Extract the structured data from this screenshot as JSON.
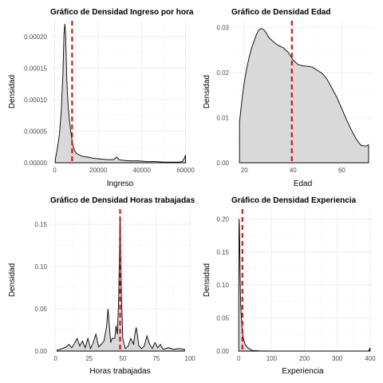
{
  "colors": {
    "fill": "#d9d9d9",
    "outline": "#000000",
    "mean_line": "#e00000",
    "grid": "#ebebeb"
  },
  "chart_data": [
    {
      "type": "area",
      "title": "Gráfico de Densidad Ingreso por hora",
      "xlabel": "Ingreso",
      "ylabel": "Densidad",
      "xlim": [
        -2000,
        62000
      ],
      "ylim": [
        0,
        0.000225
      ],
      "xticks": [
        0,
        20000,
        40000,
        60000
      ],
      "xtick_labels": [
        "0",
        "20000",
        "40000",
        "60000"
      ],
      "yticks": [
        0,
        5e-05,
        0.0001,
        0.00015,
        0.0002
      ],
      "ytick_labels": [
        "0.00000",
        "0.00005",
        "0.00010",
        "0.00015",
        "0.00020"
      ],
      "vline": 8000,
      "grid": true,
      "x": [
        300,
        1200,
        2200,
        3000,
        3800,
        4300,
        4700,
        5000,
        5300,
        5600,
        6100,
        6700,
        7400,
        8200,
        9000,
        10000,
        11500,
        13000,
        15000,
        18000,
        21000,
        24000,
        27000,
        28500,
        29500,
        31000,
        34000,
        38000,
        42000,
        46000,
        50000,
        54000,
        57000,
        58500,
        59300,
        60000
      ],
      "y": [
        5e-06,
        2.2e-05,
        4.5e-05,
        8e-05,
        0.00014,
        0.000205,
        0.00022,
        0.000205,
        0.00017,
        0.00013,
        9.5e-05,
        7e-05,
        5e-05,
        3e-05,
        2e-05,
        1.5e-05,
        1.2e-05,
        1e-05,
        9e-06,
        7e-06,
        6e-06,
        5e-06,
        5e-06,
        9e-06,
        5e-06,
        4e-06,
        3e-06,
        3e-06,
        2e-06,
        2e-06,
        1e-06,
        1e-06,
        1e-06,
        2e-06,
        6e-06,
        1.2e-05
      ]
    },
    {
      "type": "area",
      "title": "Gráfico de Densidad Edad",
      "xlabel": "Edad",
      "ylabel": "Densidad",
      "xlim": [
        15,
        73
      ],
      "ylim": [
        0,
        0.0315
      ],
      "xticks": [
        20,
        40,
        60
      ],
      "xtick_labels": [
        "20",
        "40",
        "60"
      ],
      "yticks": [
        0,
        0.01,
        0.02,
        0.03
      ],
      "ytick_labels": [
        "0.00",
        "0.01",
        "0.02",
        "0.03"
      ],
      "vline": 39.5,
      "grid": true,
      "x": [
        18,
        19,
        20,
        21,
        22,
        23,
        24,
        25,
        26,
        27,
        28,
        29,
        30,
        32,
        34,
        36,
        38,
        40,
        42,
        44,
        46,
        48,
        50,
        52,
        54,
        56,
        58,
        60,
        62,
        64,
        66,
        68,
        70,
        71
      ],
      "y": [
        0.009,
        0.014,
        0.018,
        0.021,
        0.0235,
        0.0255,
        0.027,
        0.0285,
        0.0295,
        0.0298,
        0.0295,
        0.0288,
        0.0278,
        0.0268,
        0.026,
        0.0255,
        0.0245,
        0.0228,
        0.0218,
        0.0215,
        0.0214,
        0.0212,
        0.0205,
        0.0198,
        0.0185,
        0.0165,
        0.0145,
        0.012,
        0.0095,
        0.0072,
        0.0052,
        0.0038,
        0.0037,
        0.004
      ]
    },
    {
      "type": "area",
      "title": "Gráfico de Densidad Horas trabajadas",
      "xlabel": "Horas trabajadas",
      "ylabel": "Densidad",
      "xlim": [
        -4,
        100
      ],
      "ylim": [
        0,
        0.168
      ],
      "xticks": [
        0,
        25,
        50,
        75,
        100
      ],
      "xtick_labels": [
        "0",
        "25",
        "50",
        "75",
        "100"
      ],
      "yticks": [
        0,
        0.05,
        0.1,
        0.15
      ],
      "ytick_labels": [
        "0.00",
        "0.05",
        "0.10",
        "0.15"
      ],
      "vline": 48,
      "grid": true,
      "x": [
        1,
        5,
        8,
        10,
        12,
        14,
        16,
        18,
        20,
        22,
        24,
        26,
        28,
        30,
        32,
        34,
        36,
        38,
        39,
        40,
        41,
        42,
        44,
        45,
        46,
        47,
        48,
        49,
        50,
        51,
        52,
        54,
        56,
        58,
        59,
        60,
        61,
        62,
        64,
        66,
        68,
        70,
        72,
        74,
        76,
        78,
        80,
        84,
        88,
        92,
        96
      ],
      "y": [
        0.001,
        0.003,
        0.005,
        0.008,
        0.004,
        0.009,
        0.015,
        0.006,
        0.012,
        0.004,
        0.015,
        0.003,
        0.01,
        0.02,
        0.005,
        0.008,
        0.012,
        0.03,
        0.05,
        0.03,
        0.01,
        0.015,
        0.015,
        0.03,
        0.02,
        0.065,
        0.16,
        0.065,
        0.015,
        0.008,
        0.003,
        0.006,
        0.015,
        0.008,
        0.02,
        0.028,
        0.018,
        0.006,
        0.003,
        0.006,
        0.018,
        0.008,
        0.003,
        0.01,
        0.004,
        0.008,
        0.002,
        0.004,
        0.002,
        0.003,
        0.002
      ]
    },
    {
      "type": "area",
      "title": "Gráfico de Densidad Experiencia",
      "xlabel": "Experiencia",
      "ylabel": "Densidad",
      "xlim": [
        -20,
        410
      ],
      "ylim": [
        0,
        0.215
      ],
      "xticks": [
        0,
        100,
        200,
        300,
        400
      ],
      "xtick_labels": [
        "0",
        "100",
        "200",
        "300",
        "400"
      ],
      "yticks": [
        0,
        0.05,
        0.1,
        0.15,
        0.2
      ],
      "ytick_labels": [
        "0.00",
        "0.05",
        "0.10",
        "0.15",
        "0.20"
      ],
      "vline": 11,
      "grid": true,
      "x": [
        0,
        1,
        2,
        3,
        4,
        5,
        6,
        8,
        10,
        12,
        15,
        18,
        22,
        26,
        30,
        35,
        40,
        60,
        100,
        200,
        300,
        395,
        400
      ],
      "y": [
        0.1,
        0.2,
        0.19,
        0.16,
        0.12,
        0.09,
        0.07,
        0.05,
        0.035,
        0.025,
        0.018,
        0.012,
        0.008,
        0.006,
        0.004,
        0.003,
        0.001,
        0.0003,
        0.0001,
        0.0001,
        0.0001,
        0.0002,
        0.005
      ]
    }
  ]
}
